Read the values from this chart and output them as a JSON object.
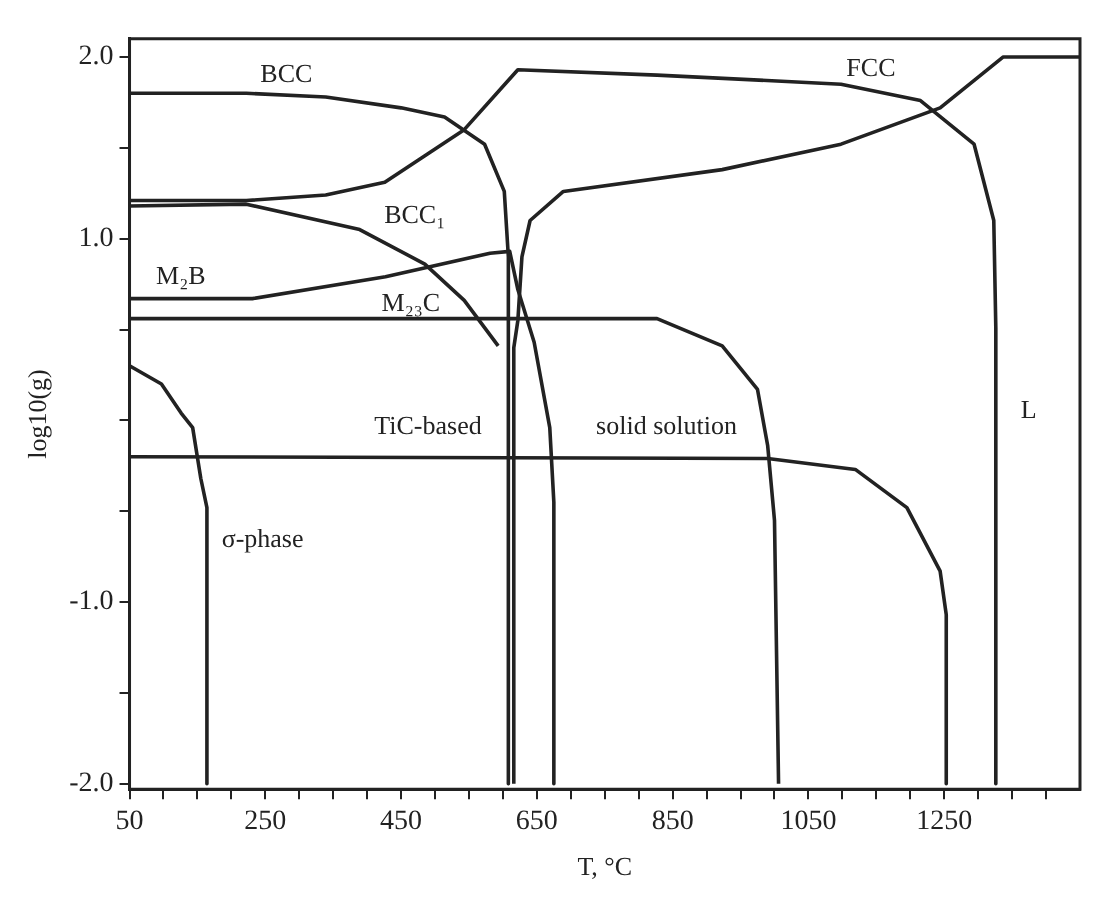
{
  "chart_data": {
    "type": "line",
    "xlabel": "T, °C",
    "ylabel": "log10(g)",
    "xlim": [
      50,
      1450
    ],
    "ylim": [
      -2.03,
      2.1
    ],
    "xticks": [
      50,
      {
        "value": 100,
        "label": null
      },
      {
        "value": 150,
        "label": null
      },
      {
        "value": 200,
        "label": null
      },
      250,
      {
        "value": 300,
        "label": null
      },
      {
        "value": 350,
        "label": null
      },
      {
        "value": 400,
        "label": null
      },
      450,
      {
        "value": 500,
        "label": null
      },
      {
        "value": 550,
        "label": null
      },
      {
        "value": 600,
        "label": null
      },
      650,
      {
        "value": 700,
        "label": null
      },
      {
        "value": 750,
        "label": null
      },
      {
        "value": 800,
        "label": null
      },
      850,
      {
        "value": 900,
        "label": null
      },
      {
        "value": 950,
        "label": null
      },
      {
        "value": 1000,
        "label": null
      },
      1050,
      {
        "value": 1100,
        "label": null
      },
      {
        "value": 1150,
        "label": null
      },
      {
        "value": 1200,
        "label": null
      },
      1250,
      {
        "value": 1300,
        "label": null
      },
      {
        "value": 1350,
        "label": null
      },
      {
        "value": 1400,
        "label": null
      }
    ],
    "yticks": [
      {
        "value": 2,
        "label": "2.0"
      },
      {
        "value": 1.5,
        "label": null
      },
      {
        "value": 1,
        "label": "1.0"
      },
      {
        "value": 0.5,
        "label": null
      },
      {
        "value": 0,
        "label": null
      },
      {
        "value": -0.5,
        "label": null
      },
      {
        "value": -1,
        "label": "-1.0"
      },
      {
        "value": -1.5,
        "label": null
      },
      {
        "value": -2,
        "label": "-2.0"
      }
    ],
    "grid": false,
    "legend": false,
    "marker": "none",
    "line_style": "solid",
    "series": [
      {
        "color": "#222222",
        "x": [
          50,
          222,
          339,
          450,
          514,
          573,
          602,
          608,
          608
        ],
        "values": [
          1.8,
          1.8,
          1.78,
          1.72,
          1.67,
          1.52,
          1.26,
          0.9,
          -2.0
        ]
      },
      {
        "color": "#222222",
        "x": [
          50,
          222,
          339,
          426,
          543,
          622,
          827,
          1098,
          1215,
          1294,
          1323,
          1326,
          1326
        ],
        "values": [
          1.21,
          1.21,
          1.24,
          1.31,
          1.6,
          1.93,
          1.9,
          1.85,
          1.76,
          1.52,
          1.1,
          0.51,
          -2.0
        ]
      },
      {
        "color": "#222222",
        "x": [
          50,
          222,
          389,
          485,
          543,
          593
        ],
        "values": [
          1.18,
          1.19,
          1.05,
          0.86,
          0.66,
          0.41
        ]
      },
      {
        "color": "#222222",
        "x": [
          50,
          231,
          427,
          581,
          610,
          622,
          646,
          669,
          675,
          675
        ],
        "values": [
          0.67,
          0.67,
          0.79,
          0.92,
          0.93,
          0.72,
          0.43,
          -0.04,
          -0.45,
          -2.0
        ]
      },
      {
        "color": "#222222",
        "x": [
          50,
          827,
          923,
          975,
          990,
          1000,
          1006
        ],
        "values": [
          0.56,
          0.56,
          0.41,
          0.17,
          -0.14,
          -0.55,
          -2.0
        ]
      },
      {
        "color": "#222222",
        "x": [
          50,
          990,
          1119,
          1195,
          1244,
          1253,
          1253
        ],
        "values": [
          -0.2,
          -0.21,
          -0.27,
          -0.48,
          -0.83,
          -1.07,
          -2.0
        ]
      },
      {
        "color": "#222222",
        "x": [
          50,
          97,
          126,
          143,
          155,
          164,
          164
        ],
        "values": [
          0.3,
          0.2,
          0.04,
          -0.04,
          -0.32,
          -0.48,
          -2.0
        ]
      },
      {
        "color": "#222222",
        "x": [
          616,
          616,
          622,
          628,
          640,
          689,
          923,
          1098,
          1244,
          1337,
          1450
        ],
        "values": [
          -2.0,
          0.4,
          0.55,
          0.9,
          1.1,
          1.26,
          1.38,
          1.52,
          1.72,
          2.0,
          2.0
        ]
      }
    ],
    "annotations": [
      "BCC",
      "BCC₁",
      "M₂B",
      "M₂₃C",
      "TiC-based",
      "solid solution",
      "σ-phase",
      "FCC",
      "L"
    ]
  }
}
